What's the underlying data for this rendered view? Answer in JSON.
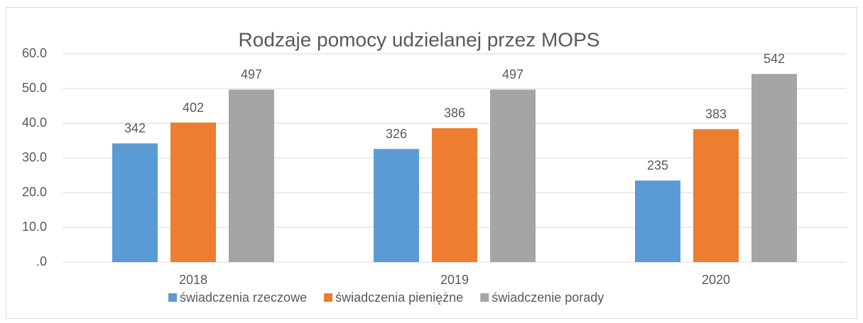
{
  "chart_data": {
    "type": "bar",
    "title": "Rodzaje pomocy udzielanej przez MOPS",
    "categories": [
      "2018",
      "2019",
      "2020"
    ],
    "series": [
      {
        "name": "świadczenia rzeczowe",
        "color": "#5b9bd5",
        "values": [
          34.2,
          32.6,
          23.5
        ],
        "value_labels": [
          "342",
          "326",
          "235"
        ]
      },
      {
        "name": "świadczenia pieniężne",
        "color": "#ed7d31",
        "values": [
          40.2,
          38.6,
          38.3
        ],
        "value_labels": [
          "402",
          "386",
          "383"
        ]
      },
      {
        "name": "świadczenie porady",
        "color": "#a5a5a5",
        "values": [
          49.7,
          49.7,
          54.2
        ],
        "value_labels": [
          "497",
          "497",
          "542"
        ]
      }
    ],
    "ylim": [
      0,
      60
    ],
    "yticks": [
      {
        "value": 0,
        "label": ".0"
      },
      {
        "value": 10,
        "label": "10.0"
      },
      {
        "value": 20,
        "label": "20.0"
      },
      {
        "value": 30,
        "label": "30.0"
      },
      {
        "value": 40,
        "label": "40.0"
      },
      {
        "value": 50,
        "label": "50.0"
      },
      {
        "value": 60,
        "label": "60.0"
      }
    ],
    "grid": true,
    "legend": "bottom"
  }
}
